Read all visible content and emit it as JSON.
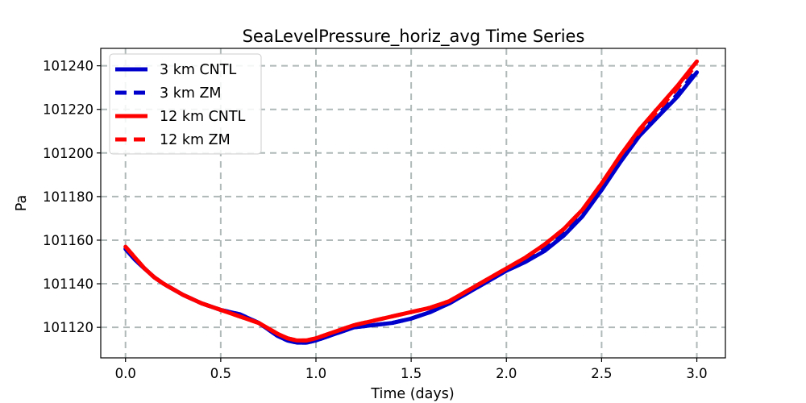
{
  "chart_data": {
    "type": "line",
    "title": "SeaLevelPressure_horiz_avg Time Series",
    "xlabel": "Time (days)",
    "ylabel": "Pa",
    "xlim": [
      -0.13,
      3.15
    ],
    "ylim": [
      101106,
      101248
    ],
    "xticks": [
      0.0,
      0.5,
      1.0,
      1.5,
      2.0,
      2.5,
      3.0
    ],
    "xtick_labels": [
      "0.0",
      "0.5",
      "1.0",
      "1.5",
      "2.0",
      "2.5",
      "3.0"
    ],
    "yticks": [
      101120,
      101140,
      101160,
      101180,
      101200,
      101220,
      101240
    ],
    "ytick_labels": [
      "101120",
      "101140",
      "101160",
      "101180",
      "101200",
      "101220",
      "101240"
    ],
    "grid": true,
    "legend_position": "top-left",
    "series": [
      {
        "name": "3 km CNTL",
        "color": "#0000cc",
        "style": "solid",
        "x": [
          0.0,
          0.05,
          0.1,
          0.15,
          0.2,
          0.3,
          0.4,
          0.5,
          0.6,
          0.7,
          0.8,
          0.85,
          0.9,
          0.95,
          1.0,
          1.1,
          1.2,
          1.3,
          1.4,
          1.5,
          1.6,
          1.7,
          1.8,
          1.9,
          2.0,
          2.1,
          2.2,
          2.3,
          2.4,
          2.5,
          2.6,
          2.7,
          2.8,
          2.9,
          3.0
        ],
        "y": [
          101156,
          101151,
          101147,
          101143,
          101140,
          101135,
          101131,
          101128,
          101126,
          101122,
          101116,
          101114,
          101113,
          101113,
          101114,
          101117,
          101120,
          101121,
          101122,
          101124,
          101127,
          101131,
          101136,
          101141,
          101146,
          101150,
          101155,
          101162,
          101171,
          101183,
          101196,
          101208,
          101217,
          101226,
          101237
        ]
      },
      {
        "name": "3 km ZM",
        "color": "#0000cc",
        "style": "dashed",
        "x": [
          0.0,
          0.05,
          0.1,
          0.15,
          0.2,
          0.3,
          0.4,
          0.5,
          0.6,
          0.7,
          0.8,
          0.85,
          0.9,
          0.95,
          1.0,
          1.1,
          1.2,
          1.3,
          1.4,
          1.5,
          1.6,
          1.7,
          1.8,
          1.9,
          2.0,
          2.1,
          2.2,
          2.3,
          2.4,
          2.5,
          2.6,
          2.7,
          2.8,
          2.9,
          3.0
        ],
        "y": [
          101156,
          101151,
          101147,
          101143,
          101140,
          101135,
          101131,
          101128,
          101126,
          101122,
          101116,
          101114,
          101113,
          101113,
          101114,
          101117,
          101120,
          101121,
          101122,
          101124,
          101127,
          101131,
          101136,
          101141,
          101146,
          101150,
          101156,
          101163,
          101172,
          101184,
          101197,
          101209,
          101218,
          101227,
          101238
        ]
      },
      {
        "name": "12 km CNTL",
        "color": "#ff0000",
        "style": "solid",
        "x": [
          0.0,
          0.05,
          0.1,
          0.15,
          0.2,
          0.3,
          0.4,
          0.5,
          0.6,
          0.7,
          0.8,
          0.85,
          0.9,
          0.95,
          1.0,
          1.1,
          1.2,
          1.3,
          1.4,
          1.5,
          1.6,
          1.7,
          1.8,
          1.9,
          2.0,
          2.1,
          2.2,
          2.3,
          2.4,
          2.5,
          2.6,
          2.7,
          2.8,
          2.9,
          3.0
        ],
        "y": [
          101157,
          101152,
          101147,
          101143,
          101140,
          101135,
          101131,
          101128,
          101125,
          101122,
          101117,
          101115,
          101114,
          101114,
          101115,
          101118,
          101121,
          101123,
          101125,
          101127,
          101129,
          101132,
          101137,
          101142,
          101147,
          101152,
          101158,
          101165,
          101174,
          101186,
          101199,
          101211,
          101221,
          101231,
          101242
        ]
      },
      {
        "name": "12 km ZM",
        "color": "#ff0000",
        "style": "dashed",
        "x": [
          0.0,
          0.05,
          0.1,
          0.15,
          0.2,
          0.3,
          0.4,
          0.5,
          0.6,
          0.7,
          0.8,
          0.85,
          0.9,
          0.95,
          1.0,
          1.1,
          1.2,
          1.3,
          1.4,
          1.5,
          1.6,
          1.7,
          1.8,
          1.9,
          2.0,
          2.1,
          2.2,
          2.3,
          2.4,
          2.5,
          2.6,
          2.7,
          2.8,
          2.9,
          3.0
        ],
        "y": [
          101157,
          101152,
          101147,
          101143,
          101140,
          101135,
          101131,
          101128,
          101125,
          101122,
          101117,
          101115,
          101114,
          101114,
          101115,
          101118,
          101121,
          101123,
          101125,
          101127,
          101129,
          101132,
          101137,
          101142,
          101147,
          101152,
          101158,
          101165,
          101174,
          101186,
          101199,
          101210,
          101220,
          101230,
          101241
        ]
      }
    ]
  }
}
